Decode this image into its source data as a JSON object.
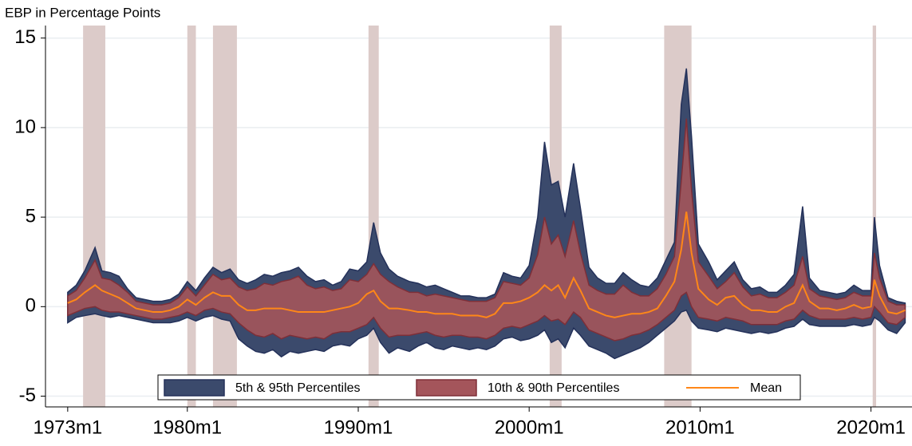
{
  "chart_data": {
    "type": "band",
    "y_label": "EBP in Percentage Points",
    "x": [
      1973.0,
      1973.5,
      1974.0,
      1974.6,
      1975.0,
      1975.5,
      1976.0,
      1976.5,
      1977.0,
      1977.5,
      1978.0,
      1978.5,
      1979.0,
      1979.5,
      1980.0,
      1980.5,
      1981.0,
      1981.5,
      1982.0,
      1982.5,
      1983.0,
      1983.5,
      1984.0,
      1984.5,
      1985.0,
      1985.5,
      1986.0,
      1986.5,
      1987.0,
      1987.5,
      1988.0,
      1988.5,
      1989.0,
      1989.5,
      1990.0,
      1990.5,
      1990.9,
      1991.3,
      1991.8,
      1992.3,
      1993.0,
      1993.5,
      1994.0,
      1994.5,
      1995.0,
      1995.5,
      1996.0,
      1996.5,
      1997.0,
      1997.5,
      1998.0,
      1998.5,
      1999.0,
      1999.5,
      2000.0,
      2000.5,
      2000.9,
      2001.3,
      2001.7,
      2002.1,
      2002.6,
      2003.0,
      2003.5,
      2004.0,
      2004.5,
      2005.0,
      2005.5,
      2006.0,
      2006.5,
      2007.0,
      2007.5,
      2008.0,
      2008.5,
      2008.9,
      2009.2,
      2009.5,
      2009.9,
      2010.5,
      2011.0,
      2011.5,
      2012.0,
      2012.5,
      2013.0,
      2013.5,
      2014.0,
      2014.5,
      2015.0,
      2015.5,
      2016.0,
      2016.4,
      2017.0,
      2017.5,
      2018.0,
      2018.5,
      2019.0,
      2019.5,
      2020.0,
      2020.2,
      2020.5,
      2021.0,
      2021.5,
      2022.0
    ],
    "series": [
      {
        "name": "5th & 95th Percentiles",
        "color": "#3b4a6c",
        "stroke": "#24315a",
        "lower": [
          -0.9,
          -0.6,
          -0.5,
          -0.4,
          -0.5,
          -0.6,
          -0.5,
          -0.6,
          -0.7,
          -0.8,
          -0.9,
          -0.9,
          -0.9,
          -0.8,
          -0.6,
          -0.8,
          -0.6,
          -0.5,
          -0.7,
          -0.8,
          -1.8,
          -2.2,
          -2.5,
          -2.6,
          -2.4,
          -2.8,
          -2.5,
          -2.6,
          -2.5,
          -2.4,
          -2.5,
          -2.2,
          -2.1,
          -2.2,
          -1.8,
          -1.6,
          -1.2,
          -2.0,
          -2.6,
          -2.3,
          -2.5,
          -2.2,
          -2.0,
          -2.3,
          -2.4,
          -2.2,
          -2.3,
          -2.4,
          -2.3,
          -2.4,
          -2.2,
          -1.8,
          -1.7,
          -1.9,
          -1.8,
          -1.6,
          -1.3,
          -2.0,
          -1.8,
          -2.3,
          -1.2,
          -1.6,
          -2.2,
          -2.4,
          -2.6,
          -2.9,
          -2.7,
          -2.5,
          -2.3,
          -2.0,
          -1.6,
          -1.2,
          -0.8,
          -0.3,
          -0.2,
          -0.8,
          -1.2,
          -1.3,
          -1.4,
          -1.2,
          -1.3,
          -1.4,
          -1.5,
          -1.4,
          -1.5,
          -1.4,
          -1.2,
          -1.1,
          -0.7,
          -1.0,
          -1.1,
          -1.1,
          -1.1,
          -1.1,
          -1.0,
          -1.1,
          -1.0,
          -0.6,
          -0.8,
          -1.3,
          -1.5,
          -0.9
        ],
        "upper": [
          0.8,
          1.2,
          2.0,
          3.3,
          2.0,
          1.9,
          1.7,
          1.0,
          0.5,
          0.4,
          0.3,
          0.3,
          0.4,
          0.7,
          1.4,
          0.9,
          1.6,
          2.2,
          1.9,
          2.1,
          1.5,
          1.3,
          1.5,
          1.8,
          1.7,
          1.9,
          2.0,
          2.2,
          1.7,
          1.4,
          1.5,
          1.2,
          1.4,
          2.1,
          2.0,
          2.5,
          4.7,
          3.0,
          2.1,
          1.7,
          1.4,
          1.3,
          1.1,
          1.2,
          1.0,
          0.8,
          0.6,
          0.6,
          0.5,
          0.5,
          0.7,
          1.9,
          1.7,
          1.6,
          2.3,
          5.0,
          9.2,
          6.8,
          7.0,
          5.0,
          8.0,
          5.5,
          2.2,
          1.6,
          1.3,
          1.3,
          1.9,
          1.5,
          1.2,
          1.1,
          1.6,
          2.6,
          3.6,
          11.3,
          13.3,
          9.5,
          3.5,
          2.5,
          1.5,
          2.0,
          2.5,
          1.5,
          1.0,
          1.1,
          0.8,
          0.8,
          1.2,
          1.8,
          5.6,
          1.6,
          0.9,
          0.8,
          0.7,
          0.8,
          1.2,
          0.9,
          0.9,
          5.0,
          2.3,
          0.5,
          0.3,
          0.2
        ]
      },
      {
        "name": "10th & 90th Percentiles",
        "color": "#a4555b",
        "stroke": "#7e2f38",
        "lower": [
          -0.5,
          -0.3,
          -0.1,
          0.0,
          -0.2,
          -0.3,
          -0.3,
          -0.4,
          -0.5,
          -0.6,
          -0.7,
          -0.7,
          -0.6,
          -0.5,
          -0.3,
          -0.5,
          -0.2,
          -0.1,
          -0.3,
          -0.4,
          -0.9,
          -1.3,
          -1.6,
          -1.7,
          -1.5,
          -1.8,
          -1.6,
          -1.7,
          -1.8,
          -1.7,
          -1.8,
          -1.5,
          -1.4,
          -1.4,
          -1.2,
          -1.0,
          -0.6,
          -1.2,
          -1.7,
          -1.6,
          -1.6,
          -1.5,
          -1.4,
          -1.6,
          -1.7,
          -1.6,
          -1.6,
          -1.7,
          -1.7,
          -1.8,
          -1.6,
          -1.2,
          -1.1,
          -1.2,
          -1.0,
          -0.8,
          -0.5,
          -0.8,
          -0.7,
          -1.0,
          -0.3,
          -0.6,
          -1.3,
          -1.5,
          -1.7,
          -1.9,
          -1.8,
          -1.6,
          -1.5,
          -1.3,
          -1.0,
          -0.6,
          -0.2,
          0.6,
          0.8,
          0.0,
          -0.6,
          -0.7,
          -0.8,
          -0.6,
          -0.7,
          -0.8,
          -1.0,
          -1.0,
          -1.0,
          -1.0,
          -0.8,
          -0.7,
          -0.2,
          -0.5,
          -0.7,
          -0.7,
          -0.7,
          -0.7,
          -0.6,
          -0.7,
          -0.6,
          0.0,
          -0.3,
          -0.9,
          -1.0,
          -0.6
        ],
        "upper": [
          0.6,
          0.9,
          1.6,
          2.6,
          1.6,
          1.5,
          1.2,
          0.8,
          0.3,
          0.2,
          0.1,
          0.1,
          0.2,
          0.5,
          1.1,
          0.6,
          1.2,
          1.8,
          1.5,
          1.6,
          1.1,
          0.9,
          1.0,
          1.3,
          1.2,
          1.4,
          1.5,
          1.7,
          1.2,
          1.0,
          1.1,
          0.9,
          1.0,
          1.5,
          1.4,
          1.8,
          2.4,
          1.8,
          1.4,
          1.1,
          0.8,
          0.8,
          0.6,
          0.7,
          0.6,
          0.5,
          0.4,
          0.3,
          0.3,
          0.3,
          0.5,
          1.4,
          1.3,
          1.2,
          1.6,
          2.9,
          5.0,
          3.5,
          4.0,
          2.8,
          4.8,
          3.0,
          1.2,
          0.9,
          0.7,
          0.7,
          1.2,
          0.8,
          0.6,
          0.6,
          1.0,
          1.8,
          2.8,
          7.0,
          10.5,
          6.5,
          2.5,
          1.7,
          1.0,
          1.4,
          1.9,
          1.1,
          0.6,
          0.7,
          0.5,
          0.5,
          0.8,
          1.2,
          2.8,
          1.0,
          0.6,
          0.5,
          0.4,
          0.5,
          0.8,
          0.6,
          0.6,
          3.0,
          1.6,
          0.3,
          0.1,
          0.1
        ]
      },
      {
        "name": "Mean",
        "color": "#ff8718",
        "values": [
          0.2,
          0.4,
          0.8,
          1.2,
          0.9,
          0.7,
          0.5,
          0.2,
          -0.1,
          -0.2,
          -0.3,
          -0.3,
          -0.2,
          0.0,
          0.4,
          0.1,
          0.5,
          0.8,
          0.6,
          0.6,
          0.1,
          -0.2,
          -0.2,
          -0.1,
          -0.1,
          -0.1,
          -0.2,
          -0.3,
          -0.3,
          -0.3,
          -0.3,
          -0.2,
          -0.1,
          0.0,
          0.2,
          0.7,
          0.9,
          0.3,
          -0.1,
          -0.1,
          -0.2,
          -0.3,
          -0.3,
          -0.4,
          -0.4,
          -0.4,
          -0.5,
          -0.5,
          -0.5,
          -0.6,
          -0.4,
          0.2,
          0.2,
          0.3,
          0.5,
          0.8,
          1.2,
          0.9,
          1.2,
          0.5,
          1.6,
          0.9,
          -0.1,
          -0.3,
          -0.5,
          -0.6,
          -0.5,
          -0.4,
          -0.4,
          -0.3,
          -0.1,
          0.6,
          1.4,
          3.2,
          5.3,
          3.0,
          1.0,
          0.4,
          0.1,
          0.5,
          0.6,
          0.1,
          -0.2,
          -0.2,
          -0.3,
          -0.3,
          0.0,
          0.2,
          1.2,
          0.3,
          -0.1,
          -0.1,
          -0.2,
          -0.1,
          0.1,
          -0.1,
          0.0,
          1.5,
          0.6,
          -0.3,
          -0.4,
          -0.2
        ]
      }
    ],
    "recessions": [
      [
        1973.9,
        1975.2
      ],
      [
        1980.0,
        1980.5
      ],
      [
        1981.5,
        1982.9
      ],
      [
        1990.6,
        1991.2
      ],
      [
        2001.2,
        2001.9
      ],
      [
        2007.9,
        2009.5
      ],
      [
        2020.1,
        2020.3
      ]
    ],
    "recession_color": "#dccbc9",
    "xlim": [
      1971.7,
      2022.4
    ],
    "ylim": [
      -5.6,
      15.7
    ],
    "xticks": [
      {
        "value": 1973,
        "label": "1973m1"
      },
      {
        "value": 1980,
        "label": "1980m1"
      },
      {
        "value": 1990,
        "label": "1990m1"
      },
      {
        "value": 2000,
        "label": "2000m1"
      },
      {
        "value": 2010,
        "label": "2010m1"
      },
      {
        "value": 2020,
        "label": "2020m1"
      }
    ],
    "yticks": [
      -5,
      0,
      5,
      10,
      15
    ],
    "grid": true,
    "legend": "bottom"
  }
}
